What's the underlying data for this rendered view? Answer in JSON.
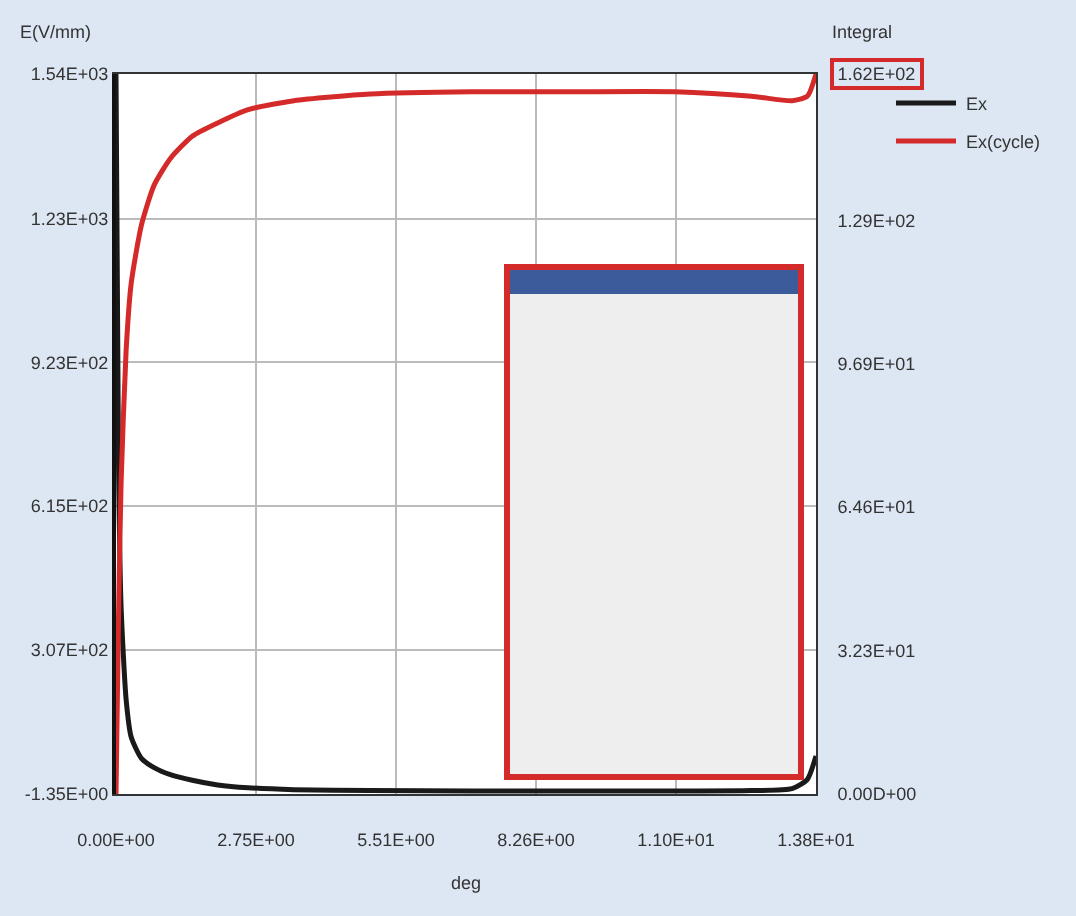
{
  "chart_data": {
    "type": "line",
    "xlabel": "deg",
    "ylabel": "E(V/mm)",
    "y2label": "Integral",
    "grid": true,
    "legend": "top right",
    "marker": "none",
    "line_style": "solid",
    "x": [
      0,
      0.05,
      0.1,
      0.2,
      0.3,
      0.5,
      0.75,
      1.07,
      1.5,
      2,
      2.6,
      3.5,
      5,
      7,
      9,
      11,
      12.5,
      13.3,
      13.6,
      13.77
    ],
    "xlim": [
      0,
      13.77
    ],
    "xticks": [
      {
        "value": 0,
        "label": "0.00E+00"
      },
      {
        "value": 2.754,
        "label": "2.75E+00"
      },
      {
        "value": 5.508,
        "label": "5.51E+00"
      },
      {
        "value": 8.262,
        "label": "8.26E+00"
      },
      {
        "value": 11.016,
        "label": "1.10E+01"
      },
      {
        "value": 13.77,
        "label": "1.38E+01"
      }
    ],
    "ylim": [
      -1.35,
      1540
    ],
    "yticks": [
      {
        "value": -1.35,
        "label": "-1.35E+00"
      },
      {
        "value": 307,
        "label": "3.07E+02"
      },
      {
        "value": 615,
        "label": "6.15E+02"
      },
      {
        "value": 923,
        "label": "9.23E+02"
      },
      {
        "value": 1230,
        "label": "1.23E+03"
      },
      {
        "value": 1540,
        "label": "1.54E+03"
      }
    ],
    "y2lim": [
      0,
      162
    ],
    "y2ticks": [
      {
        "value": 0,
        "label": "0.00D+00"
      },
      {
        "value": 32.3,
        "label": "3.23E+01"
      },
      {
        "value": 64.6,
        "label": "6.46E+01"
      },
      {
        "value": 96.9,
        "label": "9.69E+01"
      },
      {
        "value": 129,
        "label": "1.29E+02"
      },
      {
        "value": 162,
        "label": "1.62E+02"
      }
    ],
    "series": [
      {
        "name": "Ex",
        "color": "#1a1a1a",
        "values": [
          1540,
          700,
          400,
          200,
          120,
          75,
          55,
          40,
          28,
          18,
          12,
          8,
          6,
          5,
          5,
          5,
          6,
          10,
          30,
          80
        ]
      },
      {
        "name": "Ex(cycle)",
        "color": "#d42a2a",
        "axis": "y2",
        "values": [
          0,
          40,
          70,
          100,
          115,
          128,
          137,
          143,
          148,
          151,
          154,
          156,
          157.5,
          158,
          158,
          158,
          157,
          156,
          157,
          162
        ]
      }
    ]
  }
}
